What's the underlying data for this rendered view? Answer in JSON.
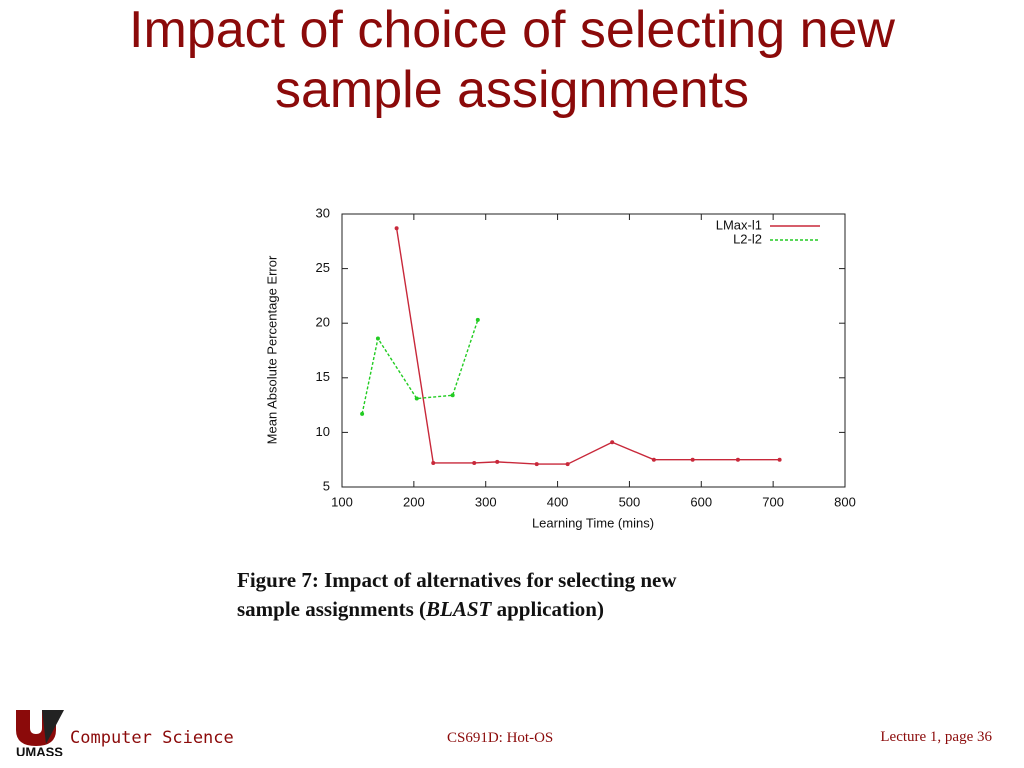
{
  "slide": {
    "title_lines": [
      "Impact of choice of selecting new",
      "sample assignments"
    ]
  },
  "chart_data": {
    "type": "line",
    "xlabel": "Learning Time (mins)",
    "ylabel": "Mean Absolute Percentage Error",
    "xlim": [
      100,
      800
    ],
    "xticks": [
      100,
      200,
      300,
      400,
      500,
      600,
      700,
      800
    ],
    "ylim": [
      5,
      30
    ],
    "yticks": [
      5,
      10,
      15,
      20,
      25,
      30
    ],
    "legend": "top-right",
    "series": [
      {
        "name": "LMax-l1",
        "color": "#c8283a",
        "dashed": false,
        "x": [
          176,
          227,
          284,
          316,
          371,
          414,
          476,
          534,
          588,
          651,
          709
        ],
        "values": [
          28.7,
          7.2,
          7.2,
          7.3,
          7.1,
          7.1,
          9.1,
          7.5,
          7.5,
          7.5,
          7.5
        ]
      },
      {
        "name": "L2-l2",
        "color": "#22cc22",
        "dashed": true,
        "x": [
          128,
          150,
          204,
          254,
          289
        ],
        "values": [
          11.7,
          18.6,
          13.1,
          13.4,
          20.3
        ]
      }
    ]
  },
  "caption": {
    "line1": "Figure 7:  Impact of alternatives for selecting new",
    "line2_before": "sample assignments (",
    "line2_em": "BLAST",
    "line2_after": " application)"
  },
  "footer": {
    "logo_text": "UMASS",
    "department": "Computer Science",
    "course": "CS691D: Hot-OS",
    "page": "Lecture 1, page 36"
  }
}
